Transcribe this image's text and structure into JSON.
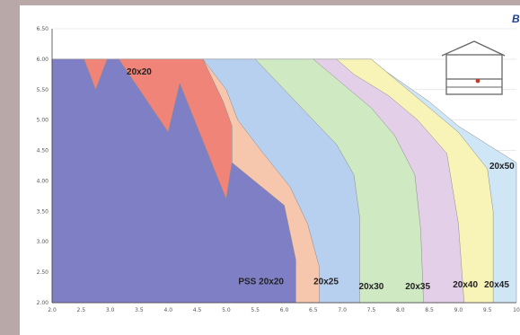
{
  "corner_label": "B",
  "chart_data": {
    "type": "area",
    "title": "",
    "xlabel": "",
    "ylabel": "",
    "xlim": [
      2.0,
      10.0
    ],
    "ylim": [
      2.0,
      6.5
    ],
    "x_ticks": [
      "2.0",
      "2.5",
      "3.0",
      "3.5",
      "4.0",
      "4.5",
      "5.0",
      "5.5",
      "6.0",
      "6.5",
      "7.0",
      "7.5",
      "8.0",
      "8.5",
      "9.0",
      "9.5",
      "10"
    ],
    "y_ticks": [
      "2.00",
      "2.50",
      "3.00",
      "3.50",
      "4.00",
      "4.50",
      "5.00",
      "5.50",
      "6.00",
      "6.50"
    ],
    "grid": true,
    "legend": "none",
    "series": [
      {
        "name": "20x50",
        "label_at": [
          9.75,
          4.2
        ],
        "color": "#cfe6f6",
        "points": [
          [
            2.0,
            6.0
          ],
          [
            7.5,
            6.0
          ],
          [
            7.75,
            5.8
          ],
          [
            8.5,
            5.3
          ],
          [
            9.0,
            4.9
          ],
          [
            9.5,
            4.6
          ],
          [
            9.75,
            4.45
          ],
          [
            10.0,
            4.3
          ],
          [
            10.0,
            2.0
          ],
          [
            2.0,
            2.0
          ]
        ]
      },
      {
        "name": "20x45",
        "label_at": [
          9.66,
          2.25
        ],
        "color": "#f8f4b8",
        "points": [
          [
            2.0,
            6.0
          ],
          [
            7.5,
            6.0
          ],
          [
            8.0,
            5.6
          ],
          [
            8.5,
            5.2
          ],
          [
            9.0,
            4.8
          ],
          [
            9.5,
            4.2
          ],
          [
            9.6,
            3.5
          ],
          [
            9.6,
            2.0
          ],
          [
            2.0,
            2.0
          ]
        ]
      },
      {
        "name": "20x40",
        "label_at": [
          9.12,
          2.25
        ],
        "color": "#e4cfe8",
        "points": [
          [
            2.0,
            6.0
          ],
          [
            6.9,
            6.0
          ],
          [
            7.2,
            5.75
          ],
          [
            7.8,
            5.4
          ],
          [
            8.3,
            5.0
          ],
          [
            8.8,
            4.45
          ],
          [
            9.0,
            3.3
          ],
          [
            9.1,
            2.0
          ],
          [
            2.0,
            2.0
          ]
        ]
      },
      {
        "name": "20x35",
        "label_at": [
          8.3,
          2.22
        ],
        "color": "#cfe9c3",
        "points": [
          [
            2.0,
            6.0
          ],
          [
            6.5,
            6.0
          ],
          [
            7.0,
            5.6
          ],
          [
            7.5,
            5.2
          ],
          [
            7.9,
            4.75
          ],
          [
            8.25,
            4.1
          ],
          [
            8.35,
            3.2
          ],
          [
            8.4,
            2.0
          ],
          [
            2.0,
            2.0
          ]
        ]
      },
      {
        "name": "20x30",
        "label_at": [
          7.5,
          2.22
        ],
        "color": "#b7d0ef",
        "points": [
          [
            2.0,
            6.0
          ],
          [
            5.5,
            6.0
          ],
          [
            6.0,
            5.5
          ],
          [
            6.5,
            5.0
          ],
          [
            6.9,
            4.6
          ],
          [
            7.2,
            4.1
          ],
          [
            7.3,
            3.4
          ],
          [
            7.3,
            2.0
          ],
          [
            2.0,
            2.0
          ]
        ]
      },
      {
        "name": "20x25",
        "label_at": [
          6.72,
          2.3
        ],
        "color": "#f6c6ad",
        "points": [
          [
            2.0,
            6.0
          ],
          [
            4.6,
            6.0
          ],
          [
            5.0,
            5.5
          ],
          [
            5.2,
            5.0
          ],
          [
            5.6,
            4.5
          ],
          [
            6.1,
            3.9
          ],
          [
            6.4,
            3.3
          ],
          [
            6.6,
            2.6
          ],
          [
            6.6,
            2.0
          ],
          [
            2.0,
            2.0
          ]
        ]
      },
      {
        "name": "20x20",
        "label_at": [
          3.5,
          5.75
        ],
        "color": "#f08478",
        "points": [
          [
            2.0,
            6.0
          ],
          [
            4.6,
            6.0
          ],
          [
            4.95,
            5.3
          ],
          [
            5.1,
            4.9
          ],
          [
            5.1,
            4.3
          ],
          [
            5.0,
            3.7
          ],
          [
            4.2,
            4.9
          ],
          [
            4.2,
            5.6
          ],
          [
            4.0,
            4.8
          ],
          [
            2.7,
            5.5
          ],
          [
            2.0,
            6.0
          ]
        ]
      },
      {
        "name": "PSS 20x20",
        "label_at": [
          5.6,
          2.3
        ],
        "color": "#7f7fc6",
        "points": [
          [
            2.0,
            6.0
          ],
          [
            2.55,
            6.0
          ],
          [
            2.75,
            5.5
          ],
          [
            2.95,
            6.0
          ],
          [
            3.15,
            6.0
          ],
          [
            4.0,
            4.8
          ],
          [
            4.2,
            5.6
          ],
          [
            5.0,
            3.7
          ],
          [
            5.1,
            4.3
          ],
          [
            6.0,
            3.6
          ],
          [
            6.2,
            2.7
          ],
          [
            6.2,
            2.0
          ],
          [
            2.0,
            2.0
          ]
        ]
      }
    ]
  }
}
